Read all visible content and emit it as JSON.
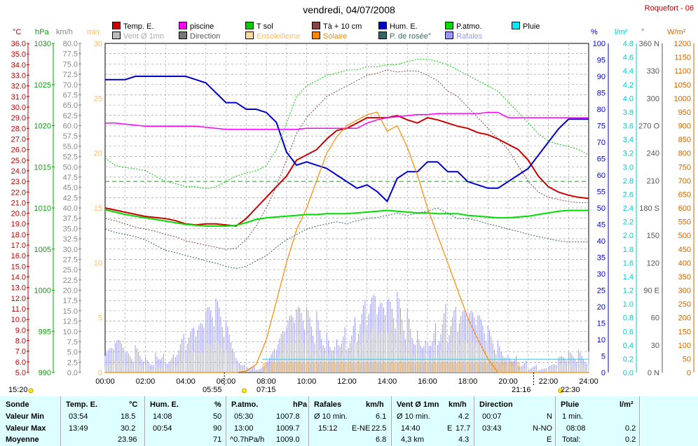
{
  "title": "vendredi, 04/07/2008",
  "station": "Roquefort - 06",
  "legend": [
    {
      "label": "Temp. E.",
      "color": "#cc0000"
    },
    {
      "label": "piscine",
      "color": "#ff00ff"
    },
    {
      "label": "T sol",
      "color": "#00cc00"
    },
    {
      "label": "Tà + 10 cm",
      "color": "#884444"
    },
    {
      "label": "Hum. E.",
      "color": "#0000cc"
    },
    {
      "label": "P.atmo.",
      "color": "#00dd00"
    },
    {
      "label": "Pluie",
      "color": "#00e8ff"
    },
    {
      "label": "Vent Ø 1mn",
      "color": "#bbbbbb"
    },
    {
      "label": "Direction",
      "color": "#777777"
    },
    {
      "label": "Ensoleilleme",
      "color": "#ffd7a0"
    },
    {
      "label": "Solaire",
      "color": "#ff8800"
    },
    {
      "label": "P. de rosée°",
      "color": "#336666"
    },
    {
      "label": "Rafales",
      "color": "#9999ff"
    }
  ],
  "units": {
    "temp": "°C",
    "pressure": "hPa",
    "wind": "km/h",
    "min": "min",
    "hum": "%",
    "rain": "l/m²",
    "dir": "°",
    "solar": "W/m²"
  },
  "axes": {
    "temp_ticks": [
      "36.0",
      "35.0",
      "34.0",
      "33.0",
      "32.0",
      "31.0",
      "30.0",
      "29.0",
      "28.0",
      "27.0",
      "26.0",
      "25.0",
      "24.0",
      "23.0",
      "22.0",
      "21.0",
      "20.0",
      "19.0",
      "18.0",
      "17.0",
      "16.0",
      "15.0",
      "14.0",
      "13.0",
      "12.0",
      "11.0",
      "10.0",
      "9.0",
      "8.0",
      "7.0",
      "6.0",
      "5.0"
    ],
    "pressure_ticks": [
      "1030",
      "1025",
      "1020",
      "1015",
      "1010",
      "1005",
      "1000",
      "995",
      "990"
    ],
    "wind_ticks": [
      "80.0",
      "77.5",
      "75.0",
      "72.5",
      "70.0",
      "67.5",
      "65.0",
      "62.5",
      "60.0",
      "57.5",
      "55.0",
      "52.5",
      "50.0",
      "47.5",
      "45.0",
      "42.5",
      "40.0",
      "37.5",
      "35.0",
      "32.5",
      "30.0",
      "27.5",
      "25.0",
      "22.5",
      "20.0",
      "17.5",
      "15.0",
      "12.5",
      "10.0",
      "7.5",
      "5.0",
      "2.5",
      "0.0"
    ],
    "min_ticks": [
      "30",
      "25",
      "20",
      "15",
      "10",
      "5",
      "0"
    ],
    "hum_ticks": [
      "100",
      "95",
      "90",
      "85",
      "80",
      "75",
      "70",
      "65",
      "60",
      "55",
      "50",
      "45",
      "40",
      "35",
      "30",
      "25",
      "20",
      "15",
      "10",
      "5",
      "0"
    ],
    "rain_ticks": [
      "4.8",
      "4.6",
      "4.4",
      "4.2",
      "4.0",
      "3.8",
      "3.6",
      "3.4",
      "3.2",
      "3.0",
      "2.8",
      "2.6",
      "2.4",
      "2.2",
      "2.0",
      "1.8",
      "1.6",
      "1.4",
      "1.2",
      "1.0",
      "0.8",
      "0.6",
      "0.4",
      "0.2",
      "0.0"
    ],
    "dir_ticks": [
      "360 N",
      "330",
      "300",
      "270 O",
      "240",
      "210",
      "180 S",
      "150",
      "120",
      "90 E",
      "60",
      "30",
      "0 N"
    ],
    "solar_ticks": [
      "1200",
      "1150",
      "1100",
      "1050",
      "1000",
      "950",
      "900",
      "850",
      "800",
      "750",
      "700",
      "650",
      "600",
      "550",
      "500",
      "450",
      "400",
      "350",
      "300",
      "250",
      "200",
      "150",
      "100",
      "50",
      "0"
    ],
    "time_ticks": [
      "00:00",
      "02:00",
      "04:00",
      "06:00",
      "08:00",
      "10:00",
      "12:00",
      "14:00",
      "16:00",
      "18:00",
      "20:00",
      "22:00",
      "24:00"
    ]
  },
  "time_marks": {
    "sunrise_label": "05:55",
    "sunset_label": "21:16",
    "left": "15:20",
    "m1": "07:15",
    "m2": "22:30"
  },
  "chart_data": {
    "type": "line",
    "title": "vendredi, 04/07/2008",
    "x_hours": [
      0,
      0.5,
      1,
      1.5,
      2,
      2.5,
      3,
      3.5,
      4,
      4.5,
      5,
      5.5,
      6,
      6.5,
      7,
      7.5,
      8,
      8.5,
      9,
      9.5,
      10,
      10.5,
      11,
      11.5,
      12,
      12.5,
      13,
      13.5,
      14,
      14.5,
      15,
      15.5,
      16,
      16.5,
      17,
      17.5,
      18,
      18.5,
      19,
      19.5,
      20,
      20.5,
      21,
      21.5,
      22,
      22.5,
      23,
      23.5,
      24
    ],
    "series": [
      {
        "name": "Temp. E.",
        "axis": "temp",
        "values": [
          20.5,
          20.3,
          20.1,
          19.9,
          19.7,
          19.6,
          19.5,
          19.3,
          19.0,
          18.9,
          19.0,
          19.0,
          18.9,
          18.8,
          19.5,
          20.5,
          21.5,
          22.5,
          23.5,
          25.0,
          25.5,
          26.0,
          27.0,
          27.8,
          28.0,
          28.5,
          29.0,
          29.0,
          29.0,
          29.2,
          28.8,
          28.5,
          29.0,
          28.8,
          28.5,
          28.2,
          28.0,
          27.6,
          27.4,
          27.0,
          26.5,
          26.0,
          25.0,
          23.5,
          22.5,
          22.0,
          21.7,
          21.5,
          21.4
        ]
      },
      {
        "name": "piscine",
        "axis": "temp",
        "values": [
          28.5,
          28.5,
          28.4,
          28.3,
          28.2,
          28.2,
          28.2,
          28.2,
          28.2,
          28.2,
          28.1,
          28.0,
          27.9,
          27.9,
          27.9,
          27.9,
          27.9,
          27.9,
          27.9,
          27.9,
          28.0,
          28.0,
          28.0,
          28.0,
          28.0,
          28.0,
          28.5,
          28.8,
          29.0,
          29.1,
          29.2,
          29.3,
          29.3,
          29.4,
          29.4,
          29.4,
          29.4,
          29.4,
          29.5,
          29.5,
          29.0,
          29.0,
          29.0,
          29.0,
          29.0,
          29.0,
          29.0,
          29.0,
          29.0
        ]
      },
      {
        "name": "Hum. E.",
        "axis": "hum",
        "values": [
          89,
          89,
          89,
          90,
          90,
          90,
          90,
          90,
          90,
          89,
          88,
          85,
          82,
          82,
          80,
          80,
          79,
          76,
          67,
          63,
          64,
          63,
          62,
          60,
          58,
          56,
          57,
          55,
          52,
          59,
          61,
          61,
          64,
          64,
          61,
          61,
          58,
          57,
          56,
          56,
          58,
          60,
          62,
          66,
          70,
          74,
          77,
          77,
          77
        ]
      },
      {
        "name": "P.atmo.",
        "axis": "pressure",
        "values": [
          1009.8,
          1009.5,
          1009.2,
          1009.0,
          1008.8,
          1008.6,
          1008.4,
          1008.2,
          1008.0,
          1007.9,
          1007.8,
          1007.8,
          1007.8,
          1007.9,
          1008.2,
          1008.6,
          1008.8,
          1008.9,
          1009.0,
          1009.1,
          1009.2,
          1009.2,
          1009.3,
          1009.3,
          1009.3,
          1009.4,
          1009.5,
          1009.6,
          1009.7,
          1009.6,
          1009.5,
          1009.4,
          1009.4,
          1009.3,
          1009.3,
          1009.3,
          1009.1,
          1009.0,
          1008.9,
          1008.8,
          1008.8,
          1008.9,
          1009.0,
          1009.2,
          1009.4,
          1009.6,
          1009.7,
          1009.7,
          1009.7
        ]
      },
      {
        "name": "Solaire",
        "axis": "solar",
        "values": [
          0,
          0,
          0,
          0,
          0,
          0,
          0,
          0,
          0,
          0,
          0,
          0,
          0,
          0,
          5,
          30,
          120,
          260,
          400,
          520,
          600,
          700,
          800,
          860,
          900,
          920,
          940,
          950,
          880,
          900,
          820,
          720,
          600,
          500,
          400,
          300,
          200,
          120,
          50,
          0,
          0,
          0,
          0,
          0,
          0,
          0,
          0,
          0,
          0
        ]
      },
      {
        "name": "Tà + 10 cm",
        "axis": "temp",
        "values": [
          19.5,
          19.3,
          19.0,
          18.7,
          18.5,
          18.3,
          18.0,
          17.8,
          17.4,
          17.2,
          17.0,
          16.8,
          16.6,
          16.7,
          17.5,
          18.8,
          20.5,
          22.5,
          25.0,
          27.5,
          29.0,
          30.0,
          31.0,
          31.5,
          32.0,
          32.5,
          33.0,
          33.2,
          33.5,
          33.3,
          33.4,
          33.4,
          33.0,
          32.5,
          31.5,
          31.0,
          30.0,
          29.0,
          28.0,
          27.0,
          26.0,
          24.5,
          23.0,
          22.0,
          21.5,
          21.3,
          21.1,
          21.0,
          21.0
        ]
      },
      {
        "name": "T sol",
        "axis": "temp",
        "values": [
          25.2,
          24.5,
          24.3,
          24.2,
          24.0,
          23.5,
          23.0,
          22.8,
          22.5,
          22.5,
          22.3,
          22.5,
          23.0,
          23.5,
          23.8,
          24.0,
          24.5,
          26.0,
          28.5,
          31.0,
          32.0,
          32.5,
          33.0,
          33.2,
          33.5,
          33.5,
          33.8,
          33.8,
          34.0,
          34.0,
          34.3,
          34.5,
          34.5,
          34.3,
          34.0,
          33.5,
          33.0,
          32.5,
          32.0,
          31.5,
          30.5,
          29.5,
          28.5,
          27.5,
          26.8,
          26.5,
          26.3,
          26.0,
          25.5
        ]
      },
      {
        "name": "P. de rosée°",
        "axis": "temp",
        "values": [
          18.5,
          18.2,
          18.0,
          17.8,
          17.5,
          17.0,
          16.5,
          16.3,
          16.0,
          15.8,
          15.5,
          15.3,
          15.0,
          14.8,
          15.0,
          15.5,
          16.0,
          16.8,
          17.5,
          18.0,
          18.5,
          18.8,
          19.0,
          19.2,
          19.0,
          19.3,
          19.5,
          19.6,
          19.8,
          20.0,
          19.8,
          20.0,
          20.2,
          20.5,
          20.0,
          19.5,
          19.5,
          19.3,
          19.0,
          18.8,
          18.5,
          18.3,
          18.0,
          17.8,
          17.6,
          17.4,
          17.3,
          17.3,
          17.3
        ]
      }
    ],
    "rafales_hours": [
      0,
      0.5,
      1,
      1.5,
      2,
      2.5,
      3,
      3.5,
      4,
      4.5,
      5,
      5.5,
      6,
      6.5,
      7,
      7.5,
      8,
      8.5,
      9,
      9.5,
      10,
      10.5,
      11,
      11.5,
      12,
      12.5,
      13,
      13.5,
      14,
      14.5,
      15,
      15.5,
      16,
      16.5,
      17,
      17.5,
      18,
      18.5,
      19,
      19.5,
      20,
      20.5,
      21,
      21.5,
      22,
      22.5,
      23,
      23.5,
      24
    ],
    "rafales_values": [
      6,
      8,
      5,
      7,
      5,
      9,
      6,
      10,
      11,
      12,
      16,
      18,
      14,
      5,
      3,
      2,
      6,
      10,
      14,
      16,
      16,
      17,
      15,
      18,
      16,
      18,
      19,
      17,
      18,
      20,
      19,
      17,
      18,
      19,
      16,
      15,
      15,
      14,
      12,
      10,
      8,
      4,
      2,
      1,
      2,
      4,
      5,
      6,
      7
    ],
    "vent_values": [
      2,
      3,
      2,
      3,
      2,
      3,
      3,
      4,
      5,
      5,
      7,
      8,
      6,
      2,
      1,
      1,
      3,
      5,
      8,
      9,
      9,
      9,
      8,
      10,
      9,
      10,
      11,
      10,
      10,
      12,
      11,
      10,
      10,
      11,
      9,
      8,
      8,
      7,
      6,
      5,
      4,
      2,
      1,
      0,
      1,
      2,
      2,
      3,
      3
    ],
    "pluie_level": 0.2,
    "pluie_start_hour": 7.8
  },
  "footer": {
    "sonde": {
      "h": "Sonde",
      "r1": "Valeur Min",
      "r2": "Valeur Max",
      "r3": "Moyenne"
    },
    "temp": {
      "h": "Temp. E.",
      "u": "°C",
      "r1t": "03:54",
      "r1v": "18.5",
      "r2t": "13:49",
      "r2v": "30.2",
      "r3v": "23.96"
    },
    "hum": {
      "h": "Hum. E.",
      "u": "%",
      "r1t": "14:08",
      "r1v": "50",
      "r2t": "00:54",
      "r2v": "90",
      "r3v": "71"
    },
    "patmo": {
      "h": "P.atmo.",
      "u": "hPa",
      "r1t": "05:30",
      "r1v": "1007.8",
      "r2t": "13:00",
      "r2v": "1009.7",
      "r3t": "^0.7hPa/h",
      "r3v": "1009.0"
    },
    "raf": {
      "h": "Rafales",
      "u": "km/h",
      "r1t": "Ø 10 min.",
      "r1v": "6.1",
      "r2t": "15:12",
      "r2d": "E-NE",
      "r2v": "22.5",
      "r3v": "6.8"
    },
    "vent": {
      "h": "Vent Ø 1mn",
      "u": "km/h",
      "r1t": "Ø 10 min.",
      "r1v": "4.2",
      "r2t": "14:40",
      "r2d": "E",
      "r2v": "17.7",
      "r3t": "4,3 km",
      "r3v": "4.3"
    },
    "dir": {
      "h": "Direction",
      "r1t": "00:07",
      "r1v": "N",
      "r2t": "03:43",
      "r2v": "N-NO",
      "r3v": "E"
    },
    "pluie": {
      "h": "Pluie",
      "u": "l/m²",
      "r1t": "1 min.",
      "r2t": "08:08",
      "r2v": "0.2",
      "r3t": "Total:",
      "r3v": "0.2"
    }
  }
}
